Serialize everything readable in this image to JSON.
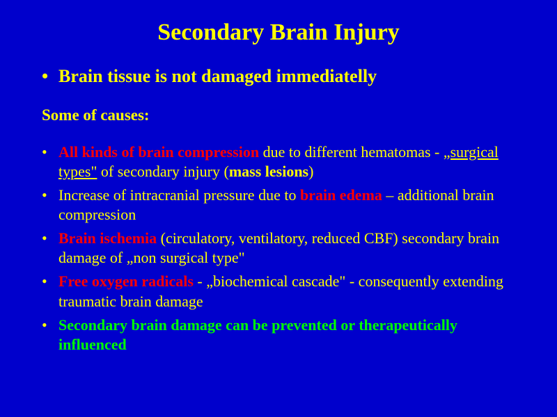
{
  "slide": {
    "background_color": "#0000cc",
    "text_color": "#ffff00",
    "accent_red": "#ff0000",
    "accent_green": "#00ff00",
    "font_family": "Times New Roman",
    "title": "Secondary Brain Injury",
    "title_fontsize": 34,
    "lead_bullet": "Brain tissue is not damaged immediatelly",
    "lead_fontsize": 26,
    "subheading": "Some of causes:",
    "body_fontsize": 22,
    "bullets": [
      {
        "segments": [
          {
            "text": "All kinds of brain compression",
            "color": "red",
            "bold": true
          },
          {
            "text": " due to different hematomas   - "
          },
          {
            "text": "„surgical types\"",
            "underline": true
          },
          {
            "text": " of secondary injury ("
          },
          {
            "text": "mass lesions",
            "bold": true
          },
          {
            "text": ")"
          }
        ]
      },
      {
        "segments": [
          {
            "text": "Increase of intracranial pressure due to "
          },
          {
            "text": "brain edema",
            "color": "red",
            "bold": true
          },
          {
            "text": " – additional brain compression"
          }
        ]
      },
      {
        "segments": [
          {
            "text": "Brain ischemia",
            "color": "red",
            "bold": true
          },
          {
            "text": " (circulatory, ventilatory, reduced CBF) secondary brain damage of „non surgical type\""
          }
        ]
      },
      {
        "segments": [
          {
            "text": "Free oxygen radicals",
            "color": "red",
            "bold": true
          },
          {
            "text": " - „biochemical cascade\" - consequently extending  traumatic brain damage"
          }
        ]
      },
      {
        "segments": [
          {
            "text": "Secondary brain damage can be prevented or therapeutically influenced",
            "color": "green",
            "bold": true
          }
        ]
      }
    ]
  }
}
